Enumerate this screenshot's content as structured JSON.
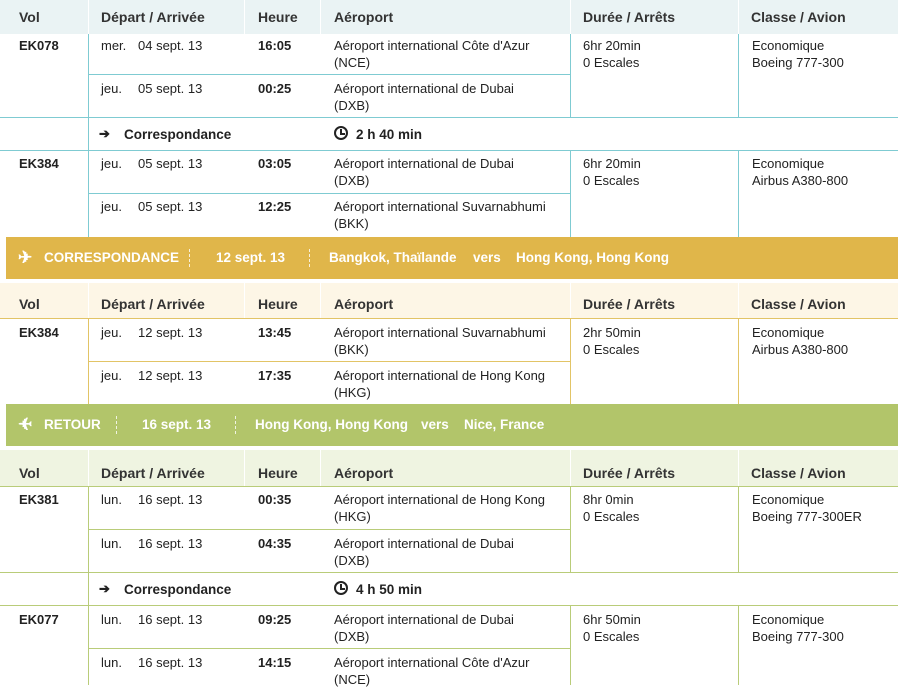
{
  "colors": {
    "out_header": "#eaf3f4",
    "out_line": "#7fcbd2",
    "conn_line": "#e2c466",
    "conn_header": "#fdf6e6",
    "conn_banner": "#e0b64a",
    "ret_banner": "#b2c56a",
    "ret_header": "#eff4e1",
    "ret_line": "#b9cc79"
  },
  "headers": {
    "vol": "Vol",
    "depart": "Départ / Arrivée",
    "heure": "Heure",
    "aeroport": "Aéroport",
    "duree": "Durée / Arrêts",
    "classe": "Classe / Avion"
  },
  "outbound": {
    "legs": [
      {
        "flight": "EK078",
        "dep_day": "mer.",
        "dep_date": "04 sept. 13",
        "dep_time": "16:05",
        "dep_airport": "Aéroport international Côte d'Azur",
        "dep_code": "(NCE)",
        "arr_day": "jeu.",
        "arr_date": "05 sept. 13",
        "arr_time": "00:25",
        "arr_airport": "Aéroport international de Dubai",
        "arr_code": "(DXB)",
        "duration": "6hr 20min",
        "stops": "0 Escales",
        "class": "Economique",
        "aircraft": "Boeing 777-300"
      },
      {
        "flight": "EK384",
        "dep_day": "jeu.",
        "dep_date": "05 sept. 13",
        "dep_time": "03:05",
        "dep_airport": "Aéroport international de Dubai",
        "dep_code": "(DXB)",
        "arr_day": "jeu.",
        "arr_date": "05 sept. 13",
        "arr_time": "12:25",
        "arr_airport": "Aéroport international Suvarnabhumi",
        "arr_code": "(BKK)",
        "duration": "6hr 20min",
        "stops": "0 Escales",
        "class": "Economique",
        "aircraft": "Airbus A380-800"
      }
    ],
    "connection": {
      "label": "Correspondance",
      "wait": "2 h 40 min"
    }
  },
  "conn_banner": {
    "title": "CORRESPONDANCE",
    "date": "12 sept. 13",
    "from": "Bangkok, Thaïlande",
    "vers": "vers",
    "to": "Hong Kong, Hong Kong"
  },
  "connection_flight": {
    "flight": "EK384",
    "dep_day": "jeu.",
    "dep_date": "12 sept. 13",
    "dep_time": "13:45",
    "dep_airport": "Aéroport international Suvarnabhumi",
    "dep_code": "(BKK)",
    "arr_day": "jeu.",
    "arr_date": "12 sept. 13",
    "arr_time": "17:35",
    "arr_airport": "Aéroport international de Hong Kong",
    "arr_code": "(HKG)",
    "duration": "2hr 50min",
    "stops": "0 Escales",
    "class": "Economique",
    "aircraft": "Airbus A380-800"
  },
  "ret_banner": {
    "title": "RETOUR",
    "date": "16 sept. 13",
    "from": "Hong Kong, Hong Kong",
    "vers": "vers",
    "to": "Nice, France"
  },
  "return": {
    "legs": [
      {
        "flight": "EK381",
        "dep_day": "lun.",
        "dep_date": "16 sept. 13",
        "dep_time": "00:35",
        "dep_airport": "Aéroport international de Hong Kong",
        "dep_code": "(HKG)",
        "arr_day": "lun.",
        "arr_date": "16 sept. 13",
        "arr_time": "04:35",
        "arr_airport": "Aéroport international de Dubai",
        "arr_code": "(DXB)",
        "duration": "8hr 0min",
        "stops": "0 Escales",
        "class": "Economique",
        "aircraft": "Boeing 777-300ER"
      },
      {
        "flight": "EK077",
        "dep_day": "lun.",
        "dep_date": "16 sept. 13",
        "dep_time": "09:25",
        "dep_airport": "Aéroport international de Dubai",
        "dep_code": "(DXB)",
        "arr_day": "lun.",
        "arr_date": "16 sept. 13",
        "arr_time": "14:15",
        "arr_airport": "Aéroport international Côte d'Azur",
        "arr_code": "(NCE)",
        "duration": "6hr 50min",
        "stops": "0 Escales",
        "class": "Economique",
        "aircraft": "Boeing 777-300"
      }
    ],
    "connection": {
      "label": "Correspondance",
      "wait": "4 h 50 min"
    }
  }
}
